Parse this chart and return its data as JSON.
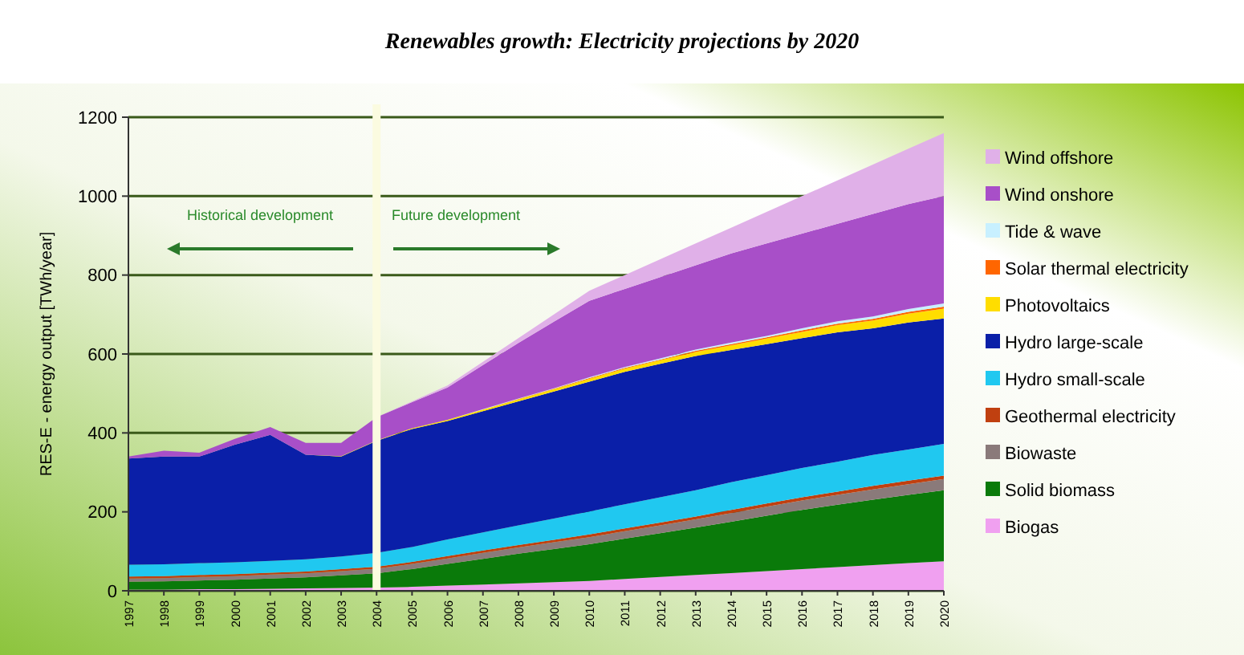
{
  "chart_data": {
    "type": "area",
    "stacked": true,
    "title": "Renewables growth: Electricity projections by 2020",
    "ylabel": "RES-E - energy output [TWh/year]",
    "categories": [
      "1997",
      "1998",
      "1999",
      "2000",
      "2001",
      "2002",
      "2003",
      "2004",
      "2005",
      "2006",
      "2007",
      "2008",
      "2009",
      "2010",
      "2011",
      "2012",
      "2013",
      "2014",
      "2015",
      "2016",
      "2017",
      "2018",
      "2019",
      "2020"
    ],
    "series": [
      {
        "name": "Biogas",
        "color": "#f0a0f0",
        "values": [
          3,
          3,
          4,
          4,
          5,
          6,
          7,
          8,
          10,
          13,
          16,
          19,
          22,
          25,
          30,
          35,
          40,
          45,
          50,
          55,
          60,
          65,
          70,
          75
        ]
      },
      {
        "name": "Solid biomass",
        "color": "#0a7a0a",
        "values": [
          20,
          21,
          22,
          24,
          26,
          28,
          32,
          36,
          45,
          55,
          65,
          75,
          84,
          93,
          102,
          111,
          120,
          130,
          140,
          150,
          158,
          166,
          173,
          180
        ]
      },
      {
        "name": "Biowaste",
        "color": "#8a7a7a",
        "values": [
          8,
          8,
          9,
          9,
          10,
          10,
          11,
          12,
          13,
          14,
          15,
          16,
          17,
          18,
          19,
          20,
          21,
          22,
          23,
          24,
          25,
          26,
          27,
          28
        ]
      },
      {
        "name": "Geothermal electricity",
        "color": "#c04010",
        "values": [
          5,
          5,
          5,
          5,
          5,
          5,
          5,
          5,
          5,
          6,
          6,
          6,
          6,
          7,
          7,
          7,
          7,
          8,
          8,
          8,
          8,
          9,
          9,
          9
        ]
      },
      {
        "name": "Hydro small-scale",
        "color": "#20c8f0",
        "values": [
          30,
          30,
          30,
          30,
          30,
          31,
          32,
          35,
          38,
          42,
          46,
          50,
          54,
          58,
          61,
          64,
          67,
          70,
          72,
          74,
          76,
          78,
          79,
          80
        ]
      },
      {
        "name": "Hydro large-scale",
        "color": "#0a1fa8",
        "values": [
          269,
          273,
          270,
          298,
          319,
          265,
          253,
          284,
          299,
          300,
          307,
          314,
          322,
          329,
          336,
          338,
          340,
          335,
          332,
          329,
          328,
          321,
          322,
          318
        ]
      },
      {
        "name": "Photovoltaics",
        "color": "#ffdd00",
        "values": [
          0,
          0,
          0,
          0,
          0,
          0,
          1,
          1,
          2,
          3,
          4,
          5,
          6,
          7,
          8,
          9,
          10,
          12,
          14,
          16,
          18,
          20,
          22,
          25
        ]
      },
      {
        "name": "Solar thermal electricity",
        "color": "#ff6600",
        "values": [
          0,
          0,
          0,
          0,
          0,
          0,
          0,
          0,
          0,
          0,
          0,
          1,
          1,
          2,
          2,
          2,
          3,
          3,
          3,
          4,
          4,
          4,
          5,
          5
        ]
      },
      {
        "name": "Tide & wave",
        "color": "#c8f0ff",
        "values": [
          0,
          0,
          0,
          0,
          0,
          0,
          0,
          0,
          0,
          0,
          1,
          1,
          1,
          2,
          2,
          3,
          3,
          4,
          4,
          5,
          6,
          6,
          7,
          8
        ]
      },
      {
        "name": "Wind onshore",
        "color": "#a84fc8",
        "values": [
          5,
          15,
          10,
          15,
          20,
          30,
          34,
          59,
          66,
          82,
          112,
          141,
          169,
          194,
          198,
          206,
          214,
          226,
          234,
          240,
          247,
          260,
          266,
          272
        ]
      },
      {
        "name": "Wind offshore",
        "color": "#e0b0e8",
        "values": [
          0,
          0,
          0,
          0,
          0,
          0,
          0,
          0,
          2,
          5,
          8,
          12,
          18,
          25,
          35,
          45,
          55,
          65,
          80,
          95,
          110,
          125,
          140,
          160
        ]
      }
    ],
    "ylim": [
      0,
      1200
    ],
    "yticks": [
      0,
      200,
      400,
      600,
      800,
      1000,
      1200
    ],
    "grid": "y",
    "legend": "right",
    "ref_lines": [
      {
        "axis": "x",
        "value": "2004",
        "color": "#fbfbe0"
      }
    ],
    "annotations": [
      "Historical development",
      "Future development"
    ]
  }
}
